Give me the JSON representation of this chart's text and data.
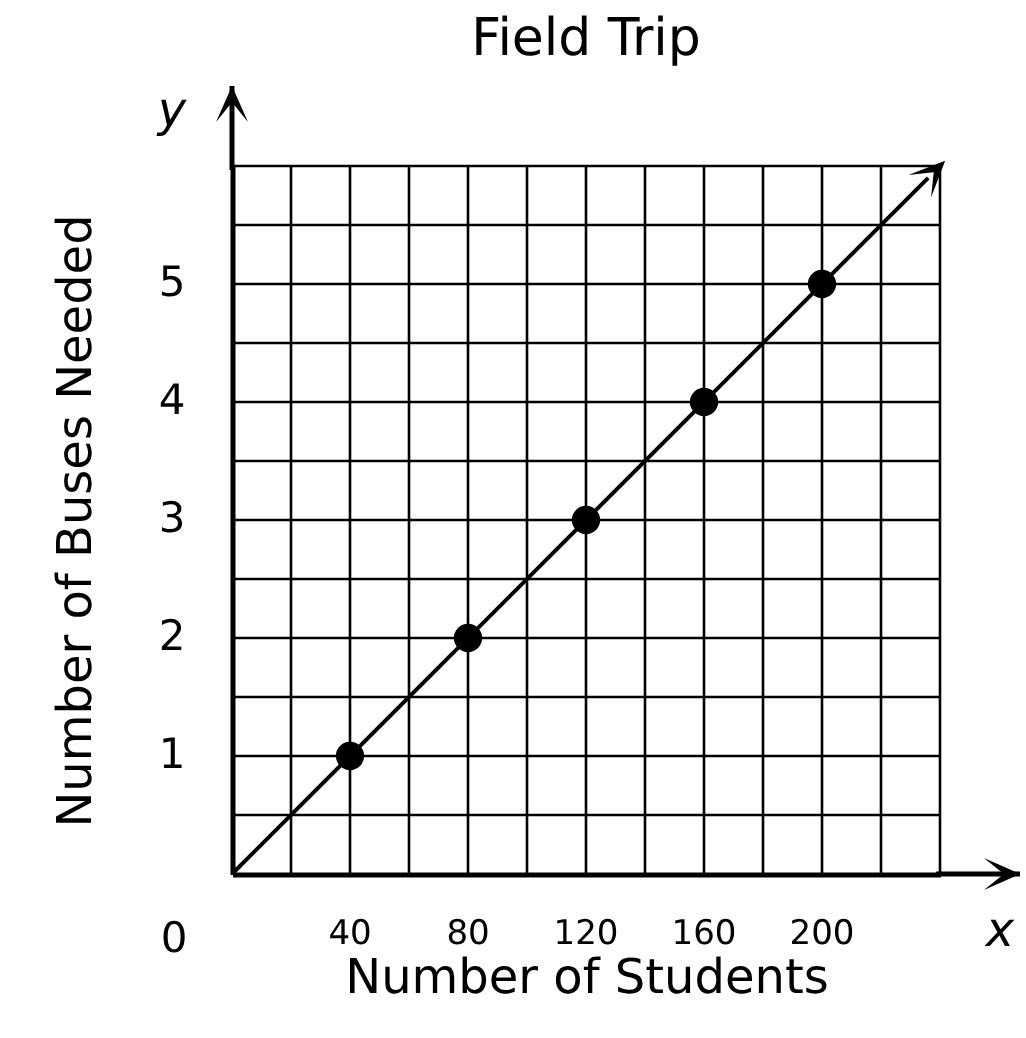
{
  "chart_data": {
    "type": "line",
    "title": "Field Trip",
    "xlabel": "Number of Students",
    "ylabel": "Number of Buses Needed",
    "annotations": [
      {
        "text": "0",
        "x": 0,
        "y": 0
      },
      "x",
      "y"
    ],
    "xlim": [
      0,
      240
    ],
    "ylim": [
      0,
      6
    ],
    "xticks": [
      {
        "value": 20,
        "label": null
      },
      40,
      {
        "value": 60,
        "label": null
      },
      80,
      {
        "value": 100,
        "label": null
      },
      120,
      {
        "value": 140,
        "label": null
      },
      160,
      {
        "value": 180,
        "label": null
      },
      200,
      {
        "value": 220,
        "label": null
      },
      {
        "value": 240,
        "label": null
      }
    ],
    "yticks": [
      {
        "value": 0.5,
        "label": null
      },
      1,
      {
        "value": 1.5,
        "label": null
      },
      2,
      {
        "value": 2.5,
        "label": null
      },
      3,
      {
        "value": 3.5,
        "label": null
      },
      4,
      {
        "value": 4.5,
        "label": null
      },
      5,
      {
        "value": 5.5,
        "label": null
      },
      {
        "value": 6,
        "label": null
      }
    ],
    "grid": true,
    "series": [
      {
        "type": "line",
        "color": "#000000",
        "x": [
          0,
          236
        ],
        "values": [
          0,
          5.9
        ]
      },
      {
        "type": "scatter",
        "color": "#000000",
        "marker": "circle",
        "x": [
          40,
          80,
          120,
          160,
          200
        ],
        "values": [
          1,
          2,
          3,
          4,
          5
        ]
      }
    ]
  }
}
